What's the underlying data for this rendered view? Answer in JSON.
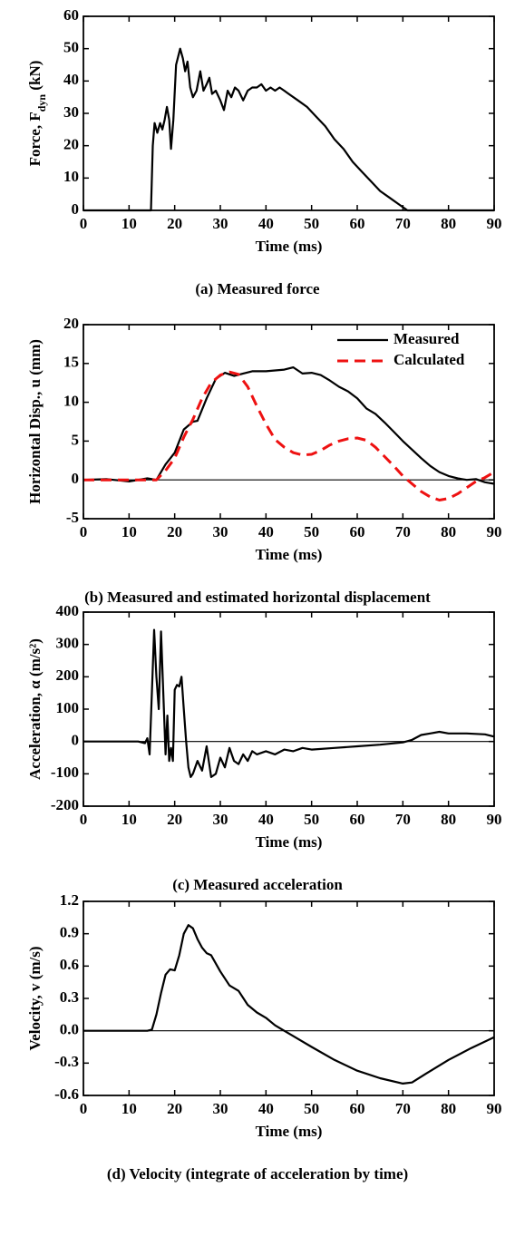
{
  "chart_data": [
    {
      "type": "line",
      "caption": "(a) Measured force",
      "x_label": "Time (ms)",
      "y_label": [
        "Force, F",
        "dyn",
        " (kN)"
      ],
      "xlim": [
        0,
        90
      ],
      "xticks": [
        0,
        10,
        20,
        30,
        40,
        50,
        60,
        70,
        80,
        90
      ],
      "ylim": [
        0,
        60
      ],
      "yticks": [
        0,
        10,
        20,
        30,
        40,
        50,
        60
      ],
      "zero_line": false,
      "series": [
        {
          "color": "#000000",
          "style": "solid",
          "x": [
            0,
            14.8,
            15.2,
            15.6,
            16.2,
            16.8,
            17.3,
            17.8,
            18.3,
            18.8,
            19.2,
            19.7,
            20.3,
            21.2,
            21.8,
            22.3,
            22.8,
            23.4,
            24.0,
            24.8,
            25.6,
            26.3,
            27.0,
            27.6,
            28.2,
            29.0,
            30.0,
            30.8,
            31.6,
            32.4,
            33.2,
            34.0,
            35.0,
            36.0,
            37.0,
            38.0,
            39.0,
            40.0,
            41.0,
            42.0,
            43.0,
            44.0,
            45.0,
            47,
            49,
            51,
            53,
            55,
            57,
            59,
            61,
            63,
            65,
            67,
            69,
            71,
            90
          ],
          "values": [
            0,
            0,
            20,
            27,
            24,
            27,
            25,
            28,
            32,
            28,
            19,
            28,
            45,
            50,
            47,
            43,
            46,
            38,
            35,
            37,
            43,
            37,
            39,
            41,
            36,
            37,
            34,
            31,
            37,
            35,
            38,
            37,
            34,
            37,
            38,
            38,
            39,
            37,
            38,
            37,
            38,
            37,
            36,
            34,
            32,
            29,
            26,
            22,
            19,
            15,
            12,
            9,
            6,
            4,
            2,
            0,
            0
          ]
        }
      ]
    },
    {
      "type": "line",
      "caption": "(b) Measured and estimated horizontal displacement",
      "x_label": "Time (ms)",
      "y_label": "Horizontal Disp., u (mm)",
      "xlim": [
        0,
        90
      ],
      "xticks": [
        0,
        10,
        20,
        30,
        40,
        50,
        60,
        70,
        80,
        90
      ],
      "ylim": [
        -5,
        20
      ],
      "yticks": [
        -5,
        0,
        5,
        10,
        15,
        20
      ],
      "zero_line": true,
      "legend": "upper right",
      "series": [
        {
          "name": "Measured",
          "color": "#000000",
          "style": "solid",
          "x": [
            0,
            5,
            10,
            14,
            16,
            18,
            20,
            22,
            24,
            25,
            27,
            29,
            31,
            33,
            35,
            37,
            40,
            42,
            44,
            46,
            48,
            50,
            52,
            54,
            56,
            58,
            60,
            62,
            64,
            66,
            68,
            70,
            72,
            74,
            76,
            78,
            80,
            82,
            84,
            86,
            88,
            90
          ],
          "values": [
            0,
            0.1,
            -0.2,
            0.2,
            0,
            2,
            3.5,
            6.5,
            7.5,
            7.6,
            10.5,
            13,
            13.8,
            13.4,
            13.7,
            14,
            14,
            14.1,
            14.2,
            14.5,
            13.7,
            13.8,
            13.5,
            12.8,
            12,
            11.4,
            10.5,
            9.2,
            8.5,
            7.4,
            6.2,
            5,
            3.9,
            2.8,
            1.8,
            1.0,
            0.5,
            0.2,
            0,
            0.1,
            -0.3,
            -0.5
          ]
        },
        {
          "name": "Calculated",
          "color": "#ee1111",
          "style": "dashed",
          "x": [
            0,
            10,
            14,
            16,
            18,
            20,
            22,
            24,
            26,
            28,
            30,
            32,
            34,
            36,
            38,
            40,
            42,
            44,
            46,
            48,
            50,
            52,
            54,
            56,
            58,
            60,
            62,
            64,
            66,
            68,
            70,
            72,
            74,
            76,
            78,
            80,
            82,
            84,
            86,
            88,
            90
          ],
          "values": [
            0,
            0,
            0,
            0,
            1.2,
            2.8,
            5.5,
            7.8,
            10.5,
            12.5,
            13.5,
            13.9,
            13.6,
            12,
            9.5,
            7.2,
            5.2,
            4.2,
            3.5,
            3.2,
            3.3,
            3.8,
            4.5,
            5,
            5.3,
            5.4,
            5.1,
            4.2,
            3.0,
            1.8,
            0.5,
            -0.5,
            -1.5,
            -2.2,
            -2.6,
            -2.4,
            -1.8,
            -1,
            -0.2,
            0.3,
            1.0
          ]
        }
      ]
    },
    {
      "type": "line",
      "caption": "(c) Measured acceleration",
      "x_label": "Time (ms)",
      "y_label": "Acceleration, α (m/s²)",
      "xlim": [
        0,
        90
      ],
      "xticks": [
        0,
        10,
        20,
        30,
        40,
        50,
        60,
        70,
        80,
        90
      ],
      "ylim": [
        -200,
        400
      ],
      "yticks": [
        -200,
        -100,
        0,
        100,
        200,
        300,
        400
      ],
      "zero_line": true,
      "series": [
        {
          "color": "#000000",
          "style": "solid",
          "x": [
            0,
            12,
            13.5,
            14,
            14.5,
            15,
            15.5,
            16,
            16.5,
            17,
            17.5,
            18,
            18.4,
            18.8,
            19.2,
            19.6,
            20,
            20.5,
            21,
            21.5,
            22,
            22.5,
            23,
            23.5,
            24,
            25,
            26,
            27,
            28,
            29,
            30,
            31,
            32,
            33,
            34,
            35,
            36,
            37,
            38,
            40,
            42,
            44,
            46,
            48,
            50,
            55,
            60,
            65,
            70,
            72,
            74,
            76,
            78,
            80,
            84,
            88,
            90
          ],
          "values": [
            0,
            0,
            -5,
            10,
            -40,
            150,
            345,
            200,
            100,
            340,
            150,
            -40,
            80,
            -60,
            -20,
            -60,
            160,
            175,
            170,
            200,
            100,
            0,
            -80,
            -110,
            -100,
            -60,
            -90,
            -15,
            -110,
            -100,
            -50,
            -80,
            -20,
            -60,
            -70,
            -40,
            -60,
            -30,
            -40,
            -30,
            -40,
            -25,
            -30,
            -20,
            -25,
            -20,
            -15,
            -10,
            -3,
            5,
            20,
            25,
            30,
            25,
            25,
            22,
            15
          ]
        }
      ]
    },
    {
      "type": "line",
      "caption": "(d) Velocity (integrate of acceleration by time)",
      "x_label": "Time (ms)",
      "y_label": "Velocity, v (m/s)",
      "xlim": [
        0,
        90
      ],
      "xticks": [
        0,
        10,
        20,
        30,
        40,
        50,
        60,
        70,
        80,
        90
      ],
      "ylim": [
        -0.6,
        1.2
      ],
      "yticks": [
        -0.6,
        -0.3,
        {
          "value": 0,
          "label": "0.0"
        },
        0.3,
        0.6,
        0.9,
        1.2
      ],
      "zero_line": true,
      "series": [
        {
          "color": "#000000",
          "style": "solid",
          "x": [
            0,
            14,
            15,
            16,
            17,
            18,
            19,
            20,
            21,
            22,
            23,
            24,
            25,
            26,
            27,
            28,
            30,
            32,
            34,
            36,
            38,
            40,
            42,
            44,
            46,
            50,
            55,
            60,
            65,
            70,
            72,
            75,
            80,
            85,
            90
          ],
          "values": [
            0,
            0,
            0.01,
            0.15,
            0.35,
            0.52,
            0.57,
            0.56,
            0.7,
            0.9,
            0.98,
            0.95,
            0.85,
            0.77,
            0.72,
            0.7,
            0.55,
            0.42,
            0.37,
            0.24,
            0.17,
            0.12,
            0.05,
            0.0,
            -0.05,
            -0.15,
            -0.27,
            -0.37,
            -0.44,
            -0.49,
            -0.48,
            -0.4,
            -0.27,
            -0.16,
            -0.06
          ]
        }
      ]
    }
  ]
}
